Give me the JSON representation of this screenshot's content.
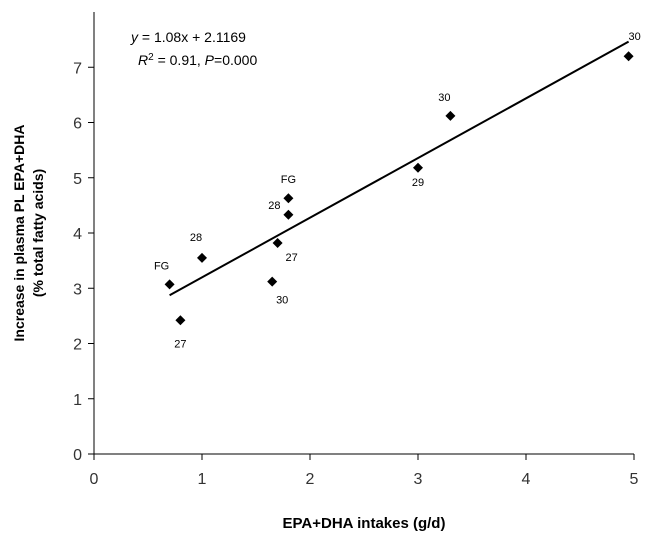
{
  "chart_data": {
    "type": "scatter",
    "xlabel": "EPA+DHA intakes (g/d)",
    "ylabel_line1": "Increase in plasma PL EPA+DHA",
    "ylabel_line2": "(% total fatty acids)",
    "xlim": [
      0,
      5
    ],
    "ylim": [
      0,
      8
    ],
    "xticks": [
      0,
      1,
      2,
      3,
      4,
      5
    ],
    "yticks": [
      0,
      1,
      2,
      3,
      4,
      5,
      6,
      7
    ],
    "grid": false,
    "legend": "none",
    "marker": "diamond",
    "marker_color": "#000000",
    "points": [
      {
        "x": 0.7,
        "y": 3.07,
        "label": "FG"
      },
      {
        "x": 0.8,
        "y": 2.42,
        "label": "27"
      },
      {
        "x": 1.0,
        "y": 3.55,
        "label": "28"
      },
      {
        "x": 1.65,
        "y": 3.12,
        "label": "30"
      },
      {
        "x": 1.7,
        "y": 3.82,
        "label": "27"
      },
      {
        "x": 1.8,
        "y": 4.33,
        "label": "28"
      },
      {
        "x": 1.8,
        "y": 4.63,
        "label": "FG"
      },
      {
        "x": 3.0,
        "y": 5.18,
        "label": "29"
      },
      {
        "x": 3.3,
        "y": 6.12,
        "label": "30"
      },
      {
        "x": 4.95,
        "y": 7.2,
        "label": "30"
      }
    ],
    "fit": {
      "slope": 1.08,
      "intercept": 2.1169,
      "x_range": [
        0.7,
        4.95
      ],
      "eq_y_prefix": "y",
      "eq_y_rest": " = 1.08x + 2.1169",
      "eq_r_prefix": "R",
      "eq_r_sup": "2",
      "eq_r_mid": " = 0.91, ",
      "eq_p_prefix": "P",
      "eq_p_rest": "=0.000"
    }
  }
}
